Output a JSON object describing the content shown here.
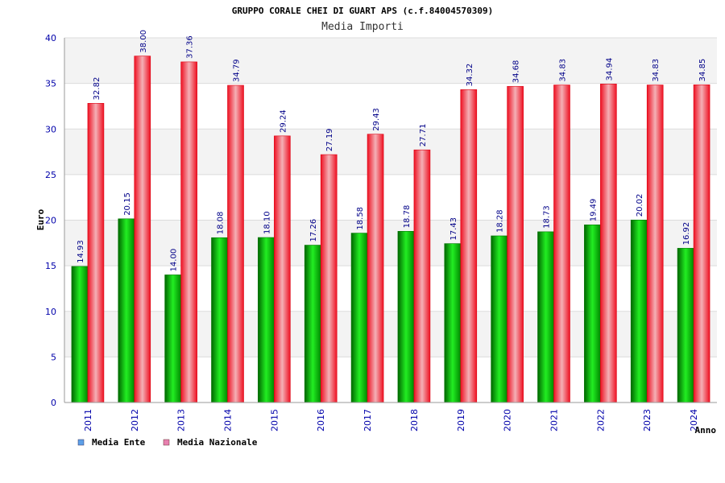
{
  "header": {
    "title": "GRUPPO CORALE CHEI DI GUART APS (c.f.84004570309)",
    "subtitle": "Media Importi"
  },
  "chart_data": {
    "type": "bar",
    "categories": [
      "2011",
      "2012",
      "2013",
      "2014",
      "2015",
      "2016",
      "2017",
      "2018",
      "2019",
      "2020",
      "2021",
      "2022",
      "2023",
      "2024"
    ],
    "series": [
      {
        "name": "Media Ente",
        "values": [
          14.93,
          20.15,
          14.0,
          18.08,
          18.1,
          17.26,
          18.58,
          18.78,
          17.43,
          18.28,
          18.73,
          19.49,
          20.02,
          16.92
        ]
      },
      {
        "name": "Media Nazionale",
        "values": [
          32.82,
          38.0,
          37.36,
          34.79,
          29.24,
          27.19,
          29.43,
          27.71,
          34.32,
          34.68,
          34.83,
          34.94,
          34.83,
          34.85
        ]
      }
    ],
    "data_labels": [
      [
        "14.93",
        "20.15",
        "14.00",
        "18.08",
        "18.10",
        "17.26",
        "18.58",
        "18.78",
        "17.43",
        "18.28",
        "18.73",
        "19.49",
        "20.02",
        "16.92"
      ],
      [
        "32.82",
        "38.00",
        "37.36",
        "34.79",
        "29.24",
        "27.19",
        "29.43",
        "27.71",
        "34.32",
        "34.68",
        "34.83",
        "34.94",
        "34.83",
        "34.85"
      ]
    ],
    "title": "GRUPPO CORALE CHEI DI GUART APS (c.f.84004570309)",
    "subtitle": "Media Importi",
    "xlabel": "Anno",
    "ylabel": "Euro",
    "ylim": [
      0,
      40
    ],
    "yticks": [
      0,
      5,
      10,
      15,
      20,
      25,
      30,
      35,
      40
    ],
    "ytick_labels": [
      "0",
      "5",
      "10",
      "15",
      "20",
      "25",
      "30",
      "35",
      "40"
    ],
    "grid": true,
    "legend_position": "bottom-left",
    "colors": {
      "ente": "#00cc00",
      "ente_dark": "#006600",
      "nazionale": "#ff3344",
      "nazionale_light": "#f2a8ae",
      "band": "#f2f2f2",
      "tick_text": "#0000aa",
      "legend_ente": "#5da0e8",
      "legend_nazionale": "#e880b0"
    }
  }
}
